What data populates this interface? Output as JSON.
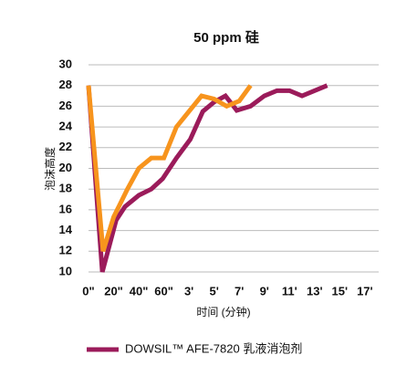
{
  "chart_data": {
    "type": "line",
    "title": "50 ppm 硅",
    "x_label": "时间 (分钟)",
    "y_label": "泡沫高度",
    "xlim": [
      0,
      11.55
    ],
    "xticks": [
      {
        "value": 0,
        "label": "0\""
      },
      {
        "value": 1,
        "label": "20\""
      },
      {
        "value": 2,
        "label": "40\""
      },
      {
        "value": 3,
        "label": "60\""
      },
      {
        "value": 4,
        "label": "3'"
      },
      {
        "value": 5,
        "label": "5'"
      },
      {
        "value": 6,
        "label": "7'"
      },
      {
        "value": 7,
        "label": "9'"
      },
      {
        "value": 8,
        "label": "11'"
      },
      {
        "value": 9,
        "label": "13'"
      },
      {
        "value": 10,
        "label": "15'"
      },
      {
        "value": 11,
        "label": "17'"
      }
    ],
    "ylim": [
      10,
      30
    ],
    "yticks": [
      10,
      12,
      14,
      16,
      18,
      20,
      22,
      24,
      26,
      28,
      30
    ],
    "grid": true,
    "series": [
      {
        "name": "DOWSIL™ AFE-7820 乳液消泡剂",
        "color": "#9b1b5a",
        "x": [
          0,
          0.55,
          1.1,
          1.45,
          2.0,
          2.5,
          2.95,
          3.5,
          4.05,
          4.55,
          5.0,
          5.45,
          5.9,
          6.45,
          7.0,
          7.5,
          8.0,
          8.5,
          9.5
        ],
        "values": [
          28,
          10,
          15,
          16.3,
          17.4,
          18,
          19,
          21,
          22.8,
          25.5,
          26.4,
          27,
          25.6,
          26,
          27,
          27.5,
          27.5,
          27,
          28
        ]
      },
      {
        "color": "#f7941d",
        "x": [
          0,
          0.58,
          1.0,
          1.55,
          2.0,
          2.5,
          3.0,
          3.5,
          4.0,
          4.5,
          5.0,
          5.5,
          6.0,
          6.45
        ],
        "values": [
          28,
          12,
          15.3,
          18,
          20,
          21,
          21,
          24,
          25.5,
          27,
          26.7,
          26,
          26.5,
          28
        ]
      }
    ]
  }
}
